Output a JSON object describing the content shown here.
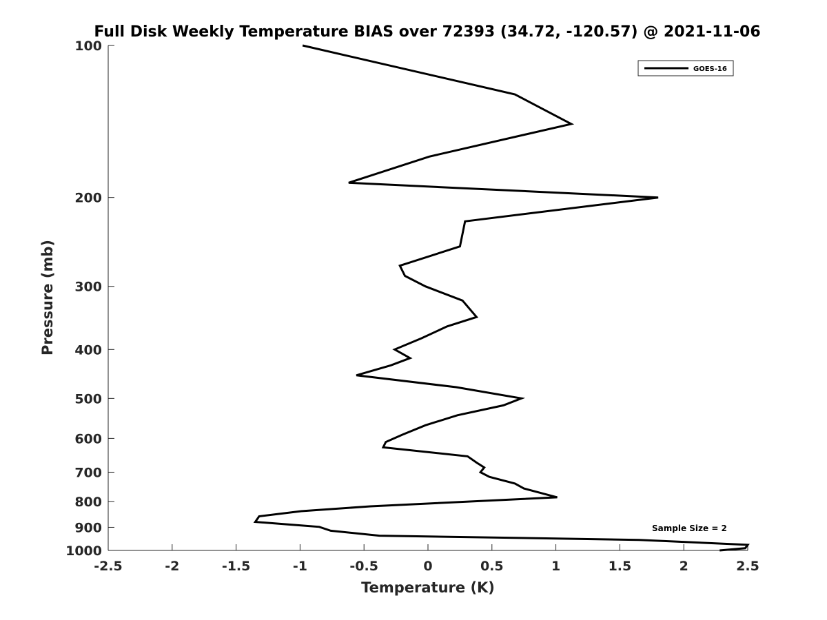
{
  "chart_data": {
    "type": "line",
    "title": "Full Disk Weekly Temperature BIAS over 72393 (34.72, -120.57) @ 2021-11-06",
    "xlabel": "Temperature (K)",
    "ylabel": "Pressure (mb)",
    "xlim": [
      -2.5,
      2.5
    ],
    "ylim": [
      100,
      1000
    ],
    "y_scale": "log",
    "y_reversed": true,
    "x_ticks": [
      -2.5,
      -2,
      -1.5,
      -1,
      -0.5,
      0,
      0.5,
      1,
      1.5,
      2,
      2.5
    ],
    "x_tick_labels": [
      "-2.5",
      "-2",
      "-1.5",
      "-1",
      "-0.5",
      "0",
      "0.5",
      "1",
      "1.5",
      "2",
      "2.5"
    ],
    "y_ticks": [
      100,
      200,
      300,
      400,
      500,
      600,
      700,
      800,
      900,
      1000
    ],
    "y_tick_labels": [
      "100",
      "200",
      "300",
      "400",
      "500",
      "600",
      "700",
      "800",
      "900",
      "1000"
    ],
    "grid": false,
    "legend_position": "top-right",
    "series": [
      {
        "name": "GOES-16",
        "color": "#000000",
        "points": [
          {
            "x": -0.98,
            "y": 100
          },
          {
            "x": 0.68,
            "y": 125
          },
          {
            "x": 1.12,
            "y": 143
          },
          {
            "x": 0.01,
            "y": 166
          },
          {
            "x": -0.62,
            "y": 187
          },
          {
            "x": 1.8,
            "y": 200
          },
          {
            "x": 0.29,
            "y": 223
          },
          {
            "x": 0.25,
            "y": 250
          },
          {
            "x": -0.22,
            "y": 273
          },
          {
            "x": -0.18,
            "y": 286
          },
          {
            "x": -0.02,
            "y": 300
          },
          {
            "x": 0.27,
            "y": 320
          },
          {
            "x": 0.38,
            "y": 345
          },
          {
            "x": 0.15,
            "y": 360
          },
          {
            "x": -0.05,
            "y": 380
          },
          {
            "x": -0.26,
            "y": 400
          },
          {
            "x": -0.14,
            "y": 416
          },
          {
            "x": -0.29,
            "y": 430
          },
          {
            "x": -0.56,
            "y": 450
          },
          {
            "x": 0.22,
            "y": 475
          },
          {
            "x": 0.73,
            "y": 500
          },
          {
            "x": 0.59,
            "y": 516
          },
          {
            "x": 0.23,
            "y": 540
          },
          {
            "x": -0.02,
            "y": 565
          },
          {
            "x": -0.2,
            "y": 590
          },
          {
            "x": -0.33,
            "y": 610
          },
          {
            "x": -0.35,
            "y": 625
          },
          {
            "x": 0.31,
            "y": 651
          },
          {
            "x": 0.38,
            "y": 670
          },
          {
            "x": 0.44,
            "y": 685
          },
          {
            "x": 0.41,
            "y": 700
          },
          {
            "x": 0.48,
            "y": 715
          },
          {
            "x": 0.68,
            "y": 737
          },
          {
            "x": 0.75,
            "y": 754
          },
          {
            "x": 1.01,
            "y": 785
          },
          {
            "x": -0.45,
            "y": 818
          },
          {
            "x": -0.99,
            "y": 836
          },
          {
            "x": -1.32,
            "y": 856
          },
          {
            "x": -1.35,
            "y": 878
          },
          {
            "x": -0.85,
            "y": 898
          },
          {
            "x": -0.76,
            "y": 914
          },
          {
            "x": -0.38,
            "y": 935
          },
          {
            "x": 1.65,
            "y": 953
          },
          {
            "x": 2.5,
            "y": 975
          },
          {
            "x": 2.48,
            "y": 990
          },
          {
            "x": 2.28,
            "y": 1000
          }
        ]
      }
    ],
    "annotations": [
      {
        "text": "Sample Size = 2",
        "position": "bottom-right"
      }
    ]
  }
}
